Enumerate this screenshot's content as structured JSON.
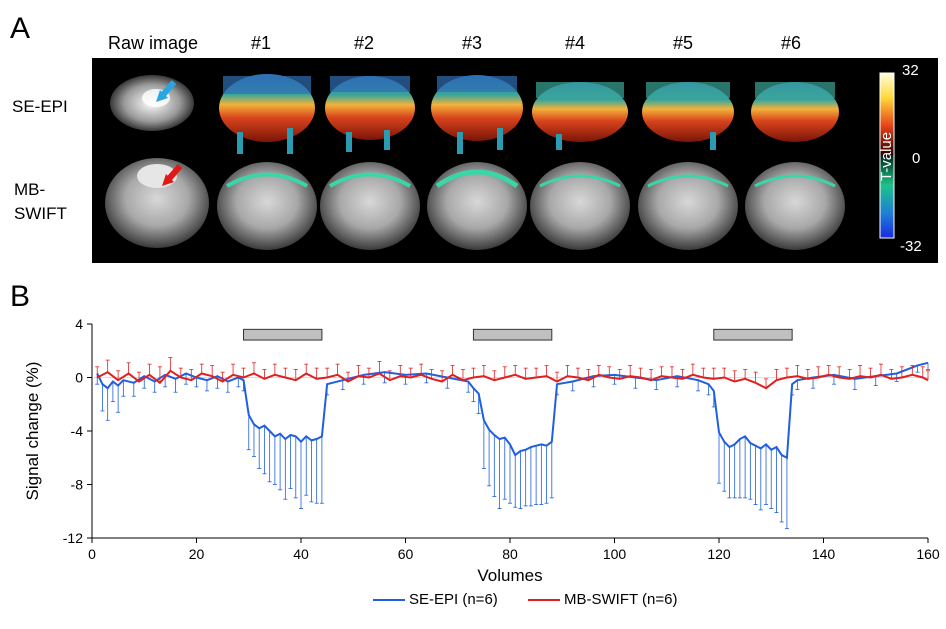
{
  "panelA": {
    "letter": "A",
    "raw_label": "Raw image",
    "columns": [
      "#1",
      "#2",
      "#3",
      "#4",
      "#5",
      "#6"
    ],
    "rows": [
      {
        "label_lines": [
          "SE-EPI"
        ],
        "arrow_color": "#2aa5e0"
      },
      {
        "label_lines": [
          "MB-",
          "SWIFT"
        ],
        "arrow_color": "#e01818"
      }
    ],
    "colorbar": {
      "label": "T-value",
      "ticks": [
        "32",
        "0",
        "-32"
      ]
    }
  },
  "panelB": {
    "letter": "B",
    "legend": [
      "SE-EPI (n=6)",
      "MB-SWIFT (n=6)"
    ]
  },
  "chart_data": {
    "type": "line",
    "xlabel": "Volumes",
    "ylabel": "Signal change (%)",
    "xlim": [
      0,
      160
    ],
    "ylim": [
      -12,
      4
    ],
    "xticks": [
      0,
      20,
      40,
      60,
      80,
      100,
      120,
      140,
      160
    ],
    "yticks": [
      4,
      0,
      -4,
      -8,
      -12
    ],
    "stimulus_blocks": [
      [
        29,
        44
      ],
      [
        73,
        88
      ],
      [
        119,
        134
      ]
    ],
    "series": [
      {
        "name": "SE-EPI (n=6)",
        "color": "#1f5fe0",
        "x": [
          1,
          2,
          3,
          4,
          5,
          6,
          8,
          10,
          12,
          14,
          16,
          18,
          20,
          22,
          24,
          26,
          28,
          29,
          30,
          31,
          32,
          33,
          34,
          35,
          36,
          37,
          38,
          39,
          40,
          41,
          42,
          43,
          44,
          45,
          48,
          52,
          56,
          60,
          64,
          68,
          72,
          73,
          74,
          75,
          76,
          77,
          78,
          79,
          80,
          81,
          82,
          83,
          84,
          85,
          86,
          87,
          88,
          89,
          92,
          96,
          100,
          104,
          108,
          112,
          116,
          118,
          119,
          120,
          121,
          122,
          123,
          124,
          125,
          126,
          127,
          128,
          129,
          130,
          131,
          132,
          133,
          134,
          135,
          138,
          142,
          146,
          150,
          154,
          158,
          160
        ],
        "y": [
          0.3,
          -0.5,
          -0.8,
          -0.3,
          -0.6,
          -0.2,
          -0.4,
          0.1,
          -0.3,
          0.2,
          -0.1,
          0.3,
          0.0,
          -0.2,
          0.1,
          -0.3,
          0.0,
          -0.2,
          -2.8,
          -3.5,
          -3.8,
          -3.6,
          -4.0,
          -4.4,
          -4.2,
          -4.6,
          -4.3,
          -4.4,
          -4.8,
          -4.4,
          -4.7,
          -4.6,
          -4.4,
          -0.5,
          -0.2,
          0.2,
          0.4,
          0.2,
          0.3,
          0.0,
          -0.3,
          -0.8,
          -1.2,
          -3.2,
          -3.9,
          -4.3,
          -4.6,
          -4.5,
          -5.0,
          -5.8,
          -5.5,
          -5.4,
          -5.2,
          -5.1,
          -5.0,
          -5.1,
          -4.8,
          -0.5,
          -0.3,
          0.1,
          0.2,
          0.0,
          -0.2,
          0.1,
          -0.2,
          -0.5,
          -1.0,
          -4.1,
          -4.8,
          -5.2,
          -5.0,
          -4.6,
          -4.4,
          -4.9,
          -5.1,
          -5.3,
          -5.0,
          -5.4,
          -5.2,
          -5.8,
          -6.0,
          -0.5,
          -0.2,
          0.0,
          0.2,
          -0.1,
          0.1,
          0.3,
          0.9,
          1.1
        ],
        "error_below": [
          0.8,
          2.0,
          2.4,
          1.5,
          2.0,
          1.2,
          1.0,
          0.9,
          0.8,
          0.9,
          1.0,
          0.8,
          0.7,
          0.8,
          0.9,
          0.8,
          0.7,
          0.8,
          2.6,
          2.4,
          3.0,
          3.6,
          3.8,
          3.6,
          4.2,
          4.5,
          4.0,
          4.6,
          5.0,
          4.4,
          4.6,
          4.8,
          5.0,
          0.8,
          0.7,
          0.7,
          0.8,
          0.7,
          0.7,
          0.8,
          0.8,
          1.0,
          1.5,
          3.6,
          4.2,
          4.6,
          5.2,
          4.6,
          4.4,
          3.9,
          4.3,
          4.2,
          4.4,
          4.4,
          4.5,
          4.3,
          4.2,
          0.8,
          0.7,
          0.8,
          0.7,
          0.8,
          0.7,
          0.8,
          0.8,
          0.8,
          1.2,
          3.8,
          3.7,
          3.8,
          4.0,
          4.4,
          4.6,
          4.2,
          4.4,
          4.6,
          4.5,
          4.4,
          4.9,
          5.0,
          5.3,
          0.8,
          0.7,
          0.8,
          0.7,
          0.8,
          0.7,
          0.6,
          0.5,
          0.5
        ]
      },
      {
        "name": "MB-SWIFT (n=6)",
        "color": "#e02020",
        "x": [
          1,
          3,
          5,
          7,
          9,
          11,
          13,
          15,
          17,
          19,
          21,
          23,
          25,
          27,
          29,
          31,
          33,
          35,
          37,
          39,
          41,
          43,
          45,
          47,
          49,
          51,
          53,
          55,
          57,
          59,
          61,
          63,
          65,
          67,
          69,
          71,
          73,
          75,
          77,
          79,
          81,
          83,
          85,
          87,
          89,
          91,
          93,
          95,
          97,
          99,
          101,
          103,
          105,
          107,
          109,
          111,
          113,
          115,
          117,
          119,
          121,
          123,
          125,
          127,
          129,
          131,
          133,
          135,
          137,
          139,
          141,
          143,
          145,
          147,
          149,
          151,
          153,
          155,
          157,
          159,
          160
        ],
        "y": [
          0.0,
          0.4,
          -0.2,
          0.3,
          -0.3,
          0.2,
          -0.4,
          0.5,
          0.0,
          -0.2,
          0.3,
          0.1,
          -0.3,
          0.2,
          0.0,
          0.3,
          -0.1,
          0.2,
          0.0,
          -0.2,
          0.3,
          -0.1,
          0.0,
          0.2,
          -0.3,
          0.1,
          0.0,
          0.3,
          -0.2,
          0.1,
          0.0,
          0.2,
          -0.1,
          -0.3,
          0.2,
          -0.2,
          0.0,
          0.1,
          -0.2,
          0.0,
          0.2,
          -0.1,
          0.0,
          0.1,
          -0.3,
          0.1,
          0.0,
          -0.2,
          0.2,
          0.0,
          -0.1,
          0.1,
          0.0,
          -0.2,
          0.1,
          0.0,
          -0.1,
          0.2,
          0.0,
          -0.1,
          0.0,
          -0.3,
          -0.1,
          -0.4,
          -0.8,
          -0.2,
          0.0,
          0.1,
          -0.1,
          0.0,
          0.2,
          0.0,
          -0.1,
          0.1,
          0.0,
          0.2,
          -0.1,
          0.0,
          0.2,
          0.0,
          -0.2
        ],
        "error_above": [
          0.8,
          0.9,
          0.7,
          0.8,
          0.7,
          0.8,
          1.2,
          1.0,
          0.7,
          0.8,
          0.7,
          0.8,
          0.7,
          0.8,
          0.7,
          0.8,
          0.7,
          0.8,
          0.7,
          0.8,
          0.7,
          0.8,
          0.7,
          0.8,
          0.7,
          0.8,
          0.7,
          0.9,
          0.7,
          0.8,
          0.7,
          0.8,
          0.7,
          0.8,
          0.7,
          0.8,
          0.7,
          0.8,
          0.7,
          0.8,
          0.7,
          0.8,
          0.7,
          0.8,
          0.7,
          0.8,
          0.7,
          0.8,
          0.7,
          0.8,
          0.7,
          0.8,
          0.7,
          0.8,
          0.7,
          0.8,
          0.7,
          0.8,
          0.7,
          0.8,
          0.7,
          0.8,
          0.7,
          0.8,
          0.7,
          0.8,
          0.7,
          0.8,
          0.7,
          0.8,
          0.7,
          0.8,
          0.7,
          0.8,
          0.7,
          0.8,
          0.7,
          0.8,
          0.7,
          0.8,
          0.7
        ]
      }
    ]
  }
}
